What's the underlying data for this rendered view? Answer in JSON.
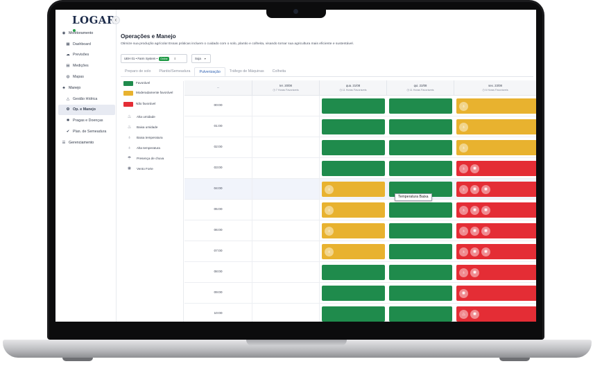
{
  "app": {
    "logo_text": "LOGAR"
  },
  "sidebar": {
    "items": [
      {
        "label": "Monitoramento",
        "icon": "gauge-icon",
        "sub": false
      },
      {
        "label": "Dashboard",
        "icon": "dashboard-icon",
        "sub": true
      },
      {
        "label": "Previsões",
        "icon": "weather-icon",
        "sub": true
      },
      {
        "label": "Medições",
        "icon": "measure-icon",
        "sub": true
      },
      {
        "label": "Mapas",
        "icon": "globe-icon",
        "sub": true
      },
      {
        "label": "Manejo",
        "icon": "manage-icon",
        "sub": false
      },
      {
        "label": "Gestão Hídrica",
        "icon": "water-icon",
        "sub": true
      },
      {
        "label": "Op. e Manejo",
        "icon": "tractor-icon",
        "sub": true,
        "active": true
      },
      {
        "label": "Pragas e Doenças",
        "icon": "bug-icon",
        "sub": true
      },
      {
        "label": "Plan. de Semeadura",
        "icon": "seed-icon",
        "sub": true
      },
      {
        "label": "Gerenciamento",
        "icon": "sliders-icon",
        "sub": false
      }
    ]
  },
  "header": {
    "title": "Operações e Manejo",
    "subtitle": "Otimize sua produção agrícola! Essas práticas incluem o cuidado com o solo, plantio e colheita, visando tornar sua agricultura mais eficiente e sustentável."
  },
  "filters": {
    "unit_prefix": "UEH 01 • Farm System •",
    "unit_badge": "Online",
    "crop": "Soja"
  },
  "tabs": [
    {
      "label": "Preparo de solo",
      "active": false
    },
    {
      "label": "Plantio/Semeadura",
      "active": false
    },
    {
      "label": "Pulverização",
      "active": true
    },
    {
      "label": "Tráfego de Máquinas",
      "active": false
    },
    {
      "label": "Colheita",
      "active": false
    }
  ],
  "legend": {
    "status": [
      {
        "label": "Favorável",
        "color": "#1f8b4c"
      },
      {
        "label": "Moderadamente favorável",
        "color": "#e8b22f"
      },
      {
        "label": "Não favorável",
        "color": "#e42d35"
      }
    ],
    "conditions": [
      {
        "label": "Alta umidade",
        "icon": "humidity-high-icon"
      },
      {
        "label": "Baixa umidade",
        "icon": "humidity-low-icon"
      },
      {
        "label": "Baixa temperatura",
        "icon": "thermometer-low-icon"
      },
      {
        "label": "Alta temperatura",
        "icon": "thermometer-high-icon"
      },
      {
        "label": "Presença de chuva",
        "icon": "rain-icon"
      },
      {
        "label": "Vento Forte",
        "icon": "wind-icon"
      }
    ]
  },
  "grid": {
    "time_header": "--",
    "days": [
      {
        "date": "ter. 20/08",
        "hours": "◷ 7 Horas Favoráveis"
      },
      {
        "date": "qua. 21/08",
        "hours": "◷ 11 Horas Favoráveis"
      },
      {
        "date": "qui. 22/08",
        "hours": "◷ 11 Horas Favoráveis"
      },
      {
        "date": "sex. 23/08",
        "hours": "◷ 6 Horas Favoráveis"
      }
    ],
    "rows": [
      {
        "time": "00:00",
        "d2": "green",
        "d3": "green",
        "d4": "yellow",
        "d2_icons": [],
        "d4_icons": [
          "thermometer-low-icon"
        ]
      },
      {
        "time": "01:00",
        "d2": "green",
        "d3": "green",
        "d4": "yellow",
        "d2_icons": [],
        "d4_icons": [
          "thermometer-low-icon"
        ]
      },
      {
        "time": "02:00",
        "d2": "green",
        "d3": "green",
        "d4": "yellow",
        "d2_icons": [],
        "d4_icons": [
          "thermometer-low-icon"
        ]
      },
      {
        "time": "03:00",
        "d2": "green",
        "d3": "green",
        "d4": "red",
        "d2_icons": [],
        "d4_icons": [
          "thermometer-low-icon",
          "wind-icon"
        ]
      },
      {
        "time": "04:00",
        "d2": "yellow",
        "d3": "green",
        "d4": "red",
        "d2_icons": [
          "thermometer-low-icon"
        ],
        "d4_icons": [
          "thermometer-low-icon",
          "wind-icon",
          "wind-icon"
        ],
        "highlight": true
      },
      {
        "time": "05:00",
        "d2": "yellow",
        "d3": "green",
        "d4": "red",
        "d2_icons": [
          "thermometer-low-icon"
        ],
        "d4_icons": [
          "thermometer-low-icon",
          "wind-icon",
          "wind-icon"
        ]
      },
      {
        "time": "06:00",
        "d2": "yellow",
        "d3": "green",
        "d4": "red",
        "d2_icons": [
          "thermometer-low-icon"
        ],
        "d4_icons": [
          "thermometer-low-icon",
          "wind-icon",
          "wind-icon"
        ]
      },
      {
        "time": "07:00",
        "d2": "yellow",
        "d3": "green",
        "d4": "red",
        "d2_icons": [
          "thermometer-low-icon"
        ],
        "d4_icons": [
          "thermometer-low-icon",
          "wind-icon",
          "wind-icon"
        ]
      },
      {
        "time": "08:00",
        "d2": "green",
        "d3": "green",
        "d4": "red",
        "d2_icons": [],
        "d4_icons": [
          "thermometer-low-icon",
          "wind-icon"
        ]
      },
      {
        "time": "09:00",
        "d2": "green",
        "d3": "green",
        "d4": "red",
        "d2_icons": [],
        "d4_icons": [
          "wind-icon"
        ]
      },
      {
        "time": "10:00",
        "d2": "green",
        "d3": "green",
        "d4": "red",
        "d2_icons": [],
        "d4_icons": [
          "humidity-low-icon",
          "wind-icon"
        ]
      }
    ]
  },
  "tooltip": {
    "text": "Temperatura Baixa"
  }
}
